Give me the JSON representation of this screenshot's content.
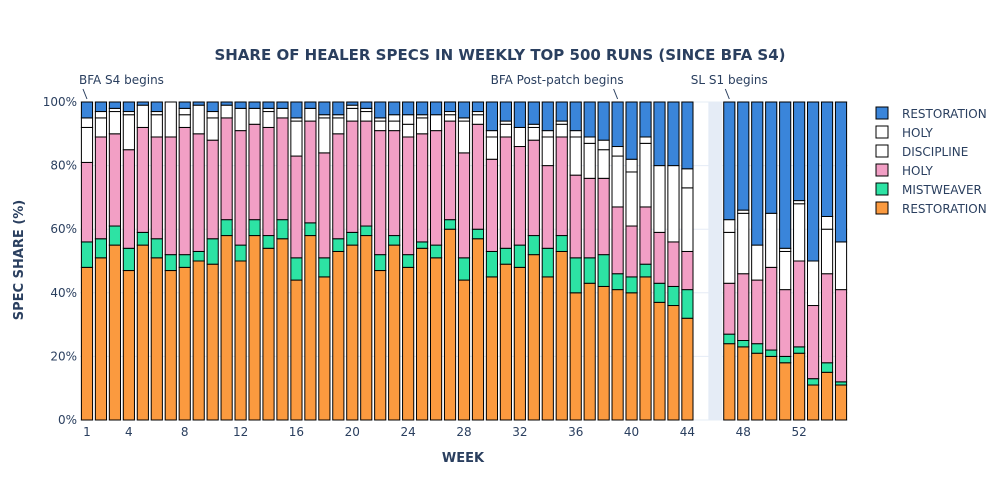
{
  "chart_data": {
    "type": "bar",
    "stacked": true,
    "title": "SHARE OF HEALER SPECS IN WEEKLY TOP 500 RUNS (SINCE BFA S4)",
    "xlabel": "WEEK",
    "ylabel": "SPEC SHARE (%)",
    "ylim": [
      0,
      100
    ],
    "y_ticks": [
      "0%",
      "20%",
      "40%",
      "60%",
      "80%",
      "100%"
    ],
    "y_tick_values": [
      0,
      20,
      40,
      60,
      80,
      100
    ],
    "x_ticks": [
      1,
      4,
      8,
      12,
      16,
      20,
      24,
      28,
      32,
      36,
      40,
      44,
      48,
      52
    ],
    "xlim": [
      0.5,
      55.5
    ],
    "grid": true,
    "legend_position": "right",
    "weeks": [
      1,
      2,
      3,
      4,
      5,
      6,
      7,
      8,
      9,
      10,
      11,
      12,
      13,
      14,
      15,
      16,
      17,
      18,
      19,
      20,
      21,
      22,
      23,
      24,
      25,
      26,
      27,
      28,
      29,
      30,
      31,
      32,
      33,
      34,
      35,
      36,
      37,
      38,
      39,
      40,
      41,
      42,
      43,
      44,
      47,
      48,
      49,
      50,
      51,
      52,
      53,
      54,
      55
    ],
    "shaded_region": [
      45.5,
      46.5
    ],
    "series": [
      {
        "name": "RESTORATION",
        "color": "#fb9a3f",
        "values": [
          48,
          51,
          55,
          47,
          55,
          51,
          47,
          48,
          50,
          49,
          58,
          50,
          58,
          54,
          57,
          44,
          58,
          45,
          53,
          55,
          58,
          47,
          55,
          48,
          54,
          51,
          60,
          44,
          57,
          45,
          49,
          48,
          52,
          45,
          53,
          40,
          43,
          42,
          41,
          40,
          45,
          37,
          36,
          32,
          24,
          23,
          21,
          20,
          18,
          21,
          11,
          15,
          11
        ]
      },
      {
        "name": "MISTWEAVER",
        "color": "#2de3a4",
        "values": [
          8,
          6,
          6,
          7,
          4,
          6,
          5,
          4,
          3,
          8,
          5,
          5,
          5,
          4,
          6,
          7,
          4,
          6,
          4,
          4,
          3,
          5,
          3,
          4,
          2,
          4,
          3,
          7,
          3,
          8,
          5,
          7,
          6,
          9,
          5,
          11,
          8,
          10,
          5,
          5,
          4,
          6,
          6,
          9,
          3,
          2,
          3,
          2,
          2,
          2,
          2,
          3,
          1
        ]
      },
      {
        "name": "HOLY",
        "color": "#f29fc5",
        "values": [
          25,
          32,
          29,
          31,
          33,
          32,
          37,
          40,
          37,
          31,
          32,
          36,
          30,
          34,
          32,
          32,
          32,
          33,
          33,
          35,
          33,
          39,
          33,
          37,
          34,
          36,
          31,
          33,
          33,
          29,
          35,
          31,
          30,
          26,
          31,
          26,
          25,
          24,
          21,
          16,
          18,
          16,
          14,
          12,
          16,
          21,
          20,
          26,
          21,
          27,
          23,
          28,
          29
        ]
      },
      {
        "name": "DISCIPLINE",
        "color": "#ffffff",
        "values": [
          11,
          6,
          7,
          11,
          7,
          7,
          11,
          4,
          9,
          7,
          4,
          7,
          5,
          5,
          3,
          11,
          4,
          11,
          5,
          4,
          3,
          3,
          3,
          4,
          5,
          5,
          2,
          10,
          3,
          7,
          4,
          6,
          4,
          9,
          4,
          12,
          11,
          9,
          16,
          17,
          20,
          21,
          24,
          20,
          16,
          19,
          11,
          17,
          12,
          18,
          14,
          14,
          15
        ]
      },
      {
        "name": "HOLY",
        "color": "#ffffff",
        "values": [
          3,
          2,
          1,
          1,
          0,
          1,
          0,
          2,
          0,
          2,
          0,
          0,
          0,
          1,
          0,
          1,
          0,
          1,
          1,
          1,
          1,
          1,
          2,
          3,
          1,
          0,
          1,
          1,
          1,
          2,
          1,
          0,
          1,
          2,
          1,
          2,
          2,
          3,
          3,
          4,
          2,
          0,
          0,
          6,
          4,
          1,
          0,
          0,
          1,
          1,
          0,
          4,
          0
        ]
      },
      {
        "name": "RESTORATION",
        "color": "#3a85da",
        "values": [
          5,
          3,
          2,
          3,
          1,
          3,
          0,
          2,
          1,
          3,
          1,
          2,
          2,
          2,
          2,
          5,
          2,
          4,
          4,
          1,
          2,
          5,
          4,
          4,
          4,
          4,
          3,
          5,
          3,
          9,
          6,
          8,
          7,
          9,
          6,
          9,
          11,
          12,
          14,
          18,
          11,
          20,
          20,
          21,
          37,
          34,
          45,
          35,
          46,
          31,
          50,
          36,
          44
        ]
      }
    ],
    "annotations": [
      {
        "text": "BFA S4 begins",
        "week": 1
      },
      {
        "text": "BFA Post-patch begins",
        "week": 39
      },
      {
        "text": "SL S1 begins",
        "week": 47
      }
    ]
  }
}
